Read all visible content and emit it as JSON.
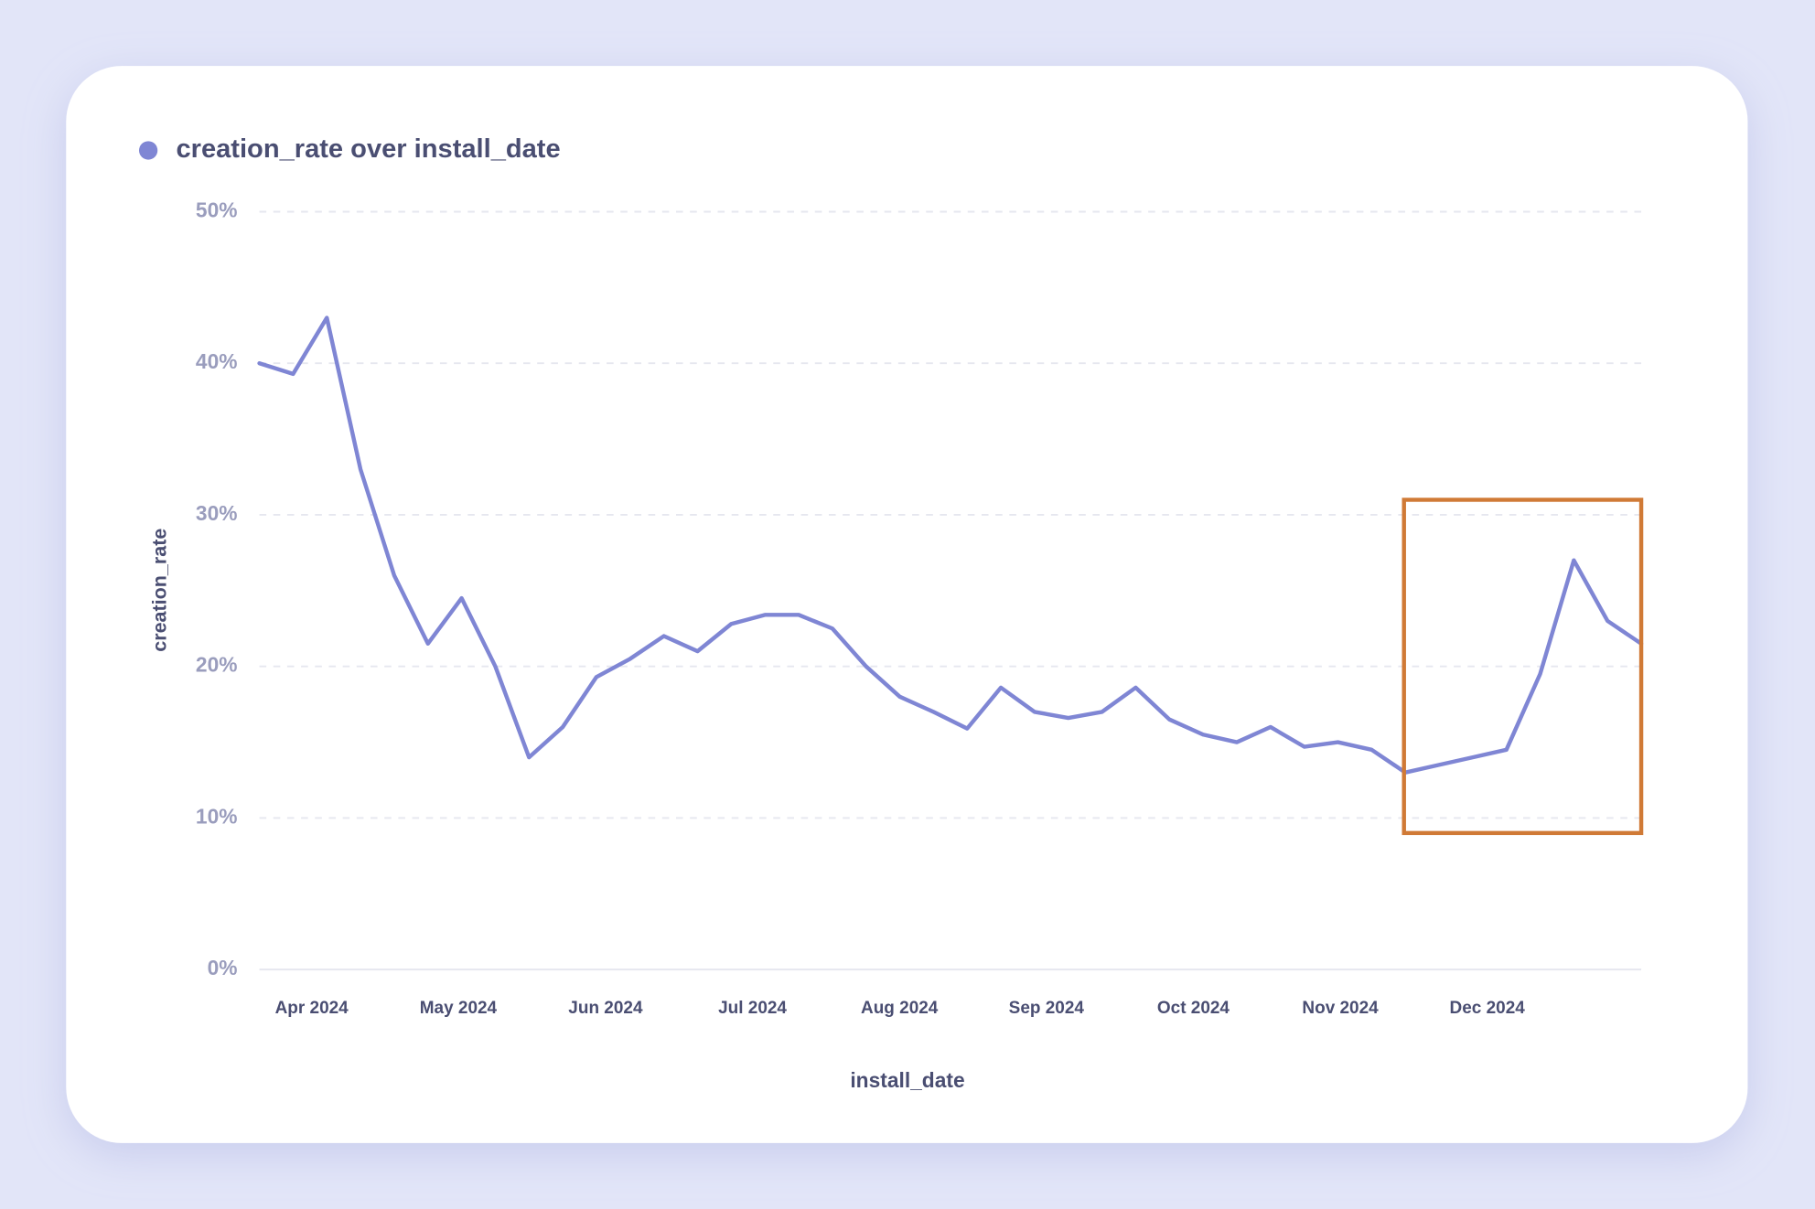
{
  "chart_data": {
    "type": "line",
    "title": "creation_rate over install_date",
    "x_label": "install_date",
    "y_label": "creation_rate",
    "color": "#7f86d4",
    "values": [
      40,
      39.3,
      43,
      33,
      26,
      21.5,
      24.5,
      20,
      14,
      16,
      19.3,
      20.5,
      22,
      21,
      22.8,
      23.4,
      23.4,
      22.5,
      20,
      18,
      17,
      15.9,
      18.6,
      17,
      16.6,
      17,
      18.6,
      16.5,
      15.5,
      15,
      16,
      14.7,
      15,
      14.5,
      13,
      13.5,
      14,
      14.5,
      19.5,
      27,
      23,
      21.5
    ],
    "xlim": [
      0,
      41
    ],
    "xticks": [
      {
        "value": 1.55,
        "label": "Apr 2024"
      },
      {
        "value": 5.9,
        "label": "May 2024"
      },
      {
        "value": 10.27,
        "label": "Jun 2024"
      },
      {
        "value": 14.63,
        "label": "Jul 2024"
      },
      {
        "value": 18.99,
        "label": "Aug 2024"
      },
      {
        "value": 23.35,
        "label": "Sep 2024"
      },
      {
        "value": 27.71,
        "label": "Oct 2024"
      },
      {
        "value": 32.07,
        "label": "Nov 2024"
      },
      {
        "value": 36.43,
        "label": "Dec 2024"
      }
    ],
    "ylim": [
      0,
      50
    ],
    "yticks": [
      {
        "value": 0,
        "label": "0%"
      },
      {
        "value": 10,
        "label": "10%"
      },
      {
        "value": 20,
        "label": "20%"
      },
      {
        "value": 30,
        "label": "30%"
      },
      {
        "value": 40,
        "label": "40%"
      },
      {
        "value": 50,
        "label": "50%"
      }
    ],
    "grid": true
  }
}
